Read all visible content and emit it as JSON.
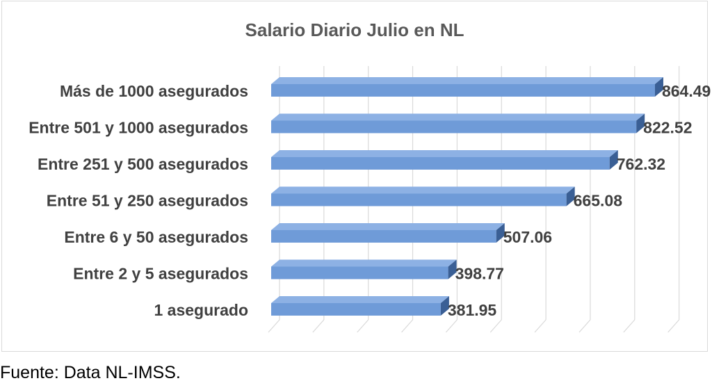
{
  "chart_data": {
    "type": "bar",
    "orientation": "horizontal",
    "style": "3d",
    "title": "Salario Diario Julio en NL",
    "categories": [
      "Más de 1000 asegurados",
      "Entre 501 y 1000 asegurados",
      "Entre 251 y 500 asegurados",
      "Entre 51 y 250 asegurados",
      "Entre 6 y 50 asegurados",
      "Entre 2 y 5 asegurados",
      "1 asegurado"
    ],
    "values": [
      864.49,
      822.52,
      762.32,
      665.08,
      507.06,
      398.77,
      381.95
    ],
    "data_labels": [
      "864.49",
      "822.52",
      "762.32",
      "665.08",
      "507.06",
      "398.77",
      "381.95"
    ],
    "xlim": [
      0,
      900
    ],
    "grid": true,
    "legend": "none",
    "colors": {
      "bar_front": "#6f9bd8",
      "bar_top": "#8db1e4",
      "bar_side": "#3a5f95",
      "gridline": "#d9d9d9",
      "label_text": "#404040",
      "title_text": "#595959"
    }
  },
  "source_note": "Fuente: Data NL-IMSS."
}
